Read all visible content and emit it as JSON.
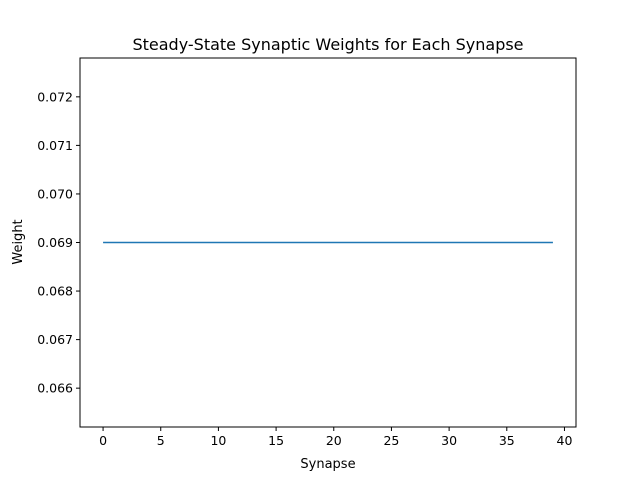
{
  "chart_data": {
    "type": "line",
    "title": "Steady-State Synaptic Weights for Each Synapse",
    "xlabel": "Synapse",
    "ylabel": "Weight",
    "xlim": [
      -2,
      41
    ],
    "ylim": [
      0.0652,
      0.0728
    ],
    "xticks": [
      0,
      5,
      10,
      15,
      20,
      25,
      30,
      35,
      40
    ],
    "xtick_labels": [
      "0",
      "5",
      "10",
      "15",
      "20",
      "25",
      "30",
      "35",
      "40"
    ],
    "yticks": [
      0.066,
      0.067,
      0.068,
      0.069,
      0.07,
      0.071,
      0.072
    ],
    "ytick_labels": [
      "0.066",
      "0.067",
      "0.068",
      "0.069",
      "0.070",
      "0.071",
      "0.072"
    ],
    "grid": false,
    "series": [
      {
        "color": "#1f77b4",
        "x": [
          0,
          1,
          2,
          3,
          4,
          5,
          6,
          7,
          8,
          9,
          10,
          11,
          12,
          13,
          14,
          15,
          16,
          17,
          18,
          19,
          20,
          21,
          22,
          23,
          24,
          25,
          26,
          27,
          28,
          29,
          30,
          31,
          32,
          33,
          34,
          35,
          36,
          37,
          38,
          39
        ],
        "values": [
          0.069,
          0.069,
          0.069,
          0.069,
          0.069,
          0.069,
          0.069,
          0.069,
          0.069,
          0.069,
          0.069,
          0.069,
          0.069,
          0.069,
          0.069,
          0.069,
          0.069,
          0.069,
          0.069,
          0.069,
          0.069,
          0.069,
          0.069,
          0.069,
          0.069,
          0.069,
          0.069,
          0.069,
          0.069,
          0.069,
          0.069,
          0.069,
          0.069,
          0.069,
          0.069,
          0.069,
          0.069,
          0.069,
          0.069,
          0.069
        ]
      }
    ]
  }
}
